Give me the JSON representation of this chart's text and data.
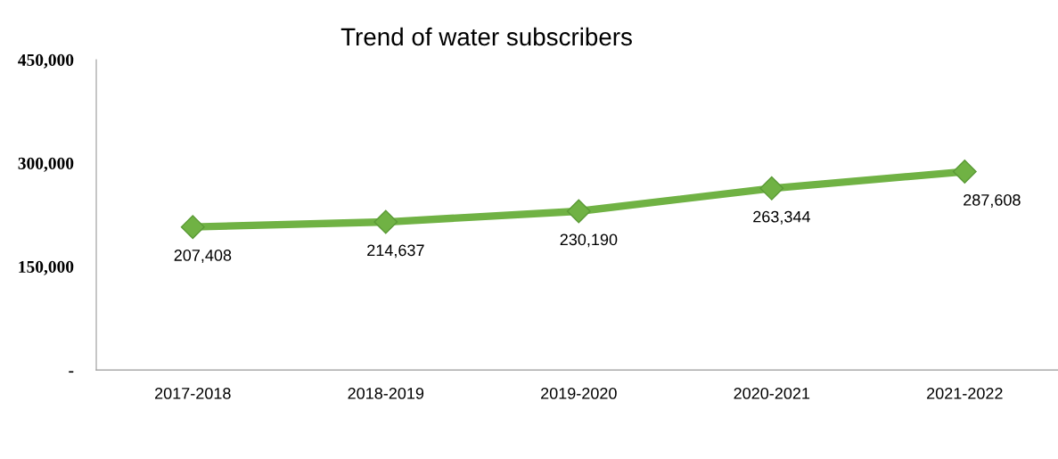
{
  "chart_data": {
    "type": "line",
    "title": "Trend of water subscribers",
    "categories": [
      "2017-2018",
      "2018-2019",
      "2019-2020",
      "2020-2021",
      "2021-2022"
    ],
    "series": [
      {
        "color": "#70b244",
        "values": [
          207408,
          214637,
          230190,
          263344,
          287608
        ],
        "value_labels": [
          "207,408",
          "214,637",
          "230,190",
          "263,344",
          "287,608"
        ]
      }
    ],
    "ylim": [
      0,
      450000
    ],
    "yticks": [
      {
        "value": 0,
        "label": "-"
      },
      {
        "value": 150000,
        "label": "150,000"
      },
      {
        "value": 300000,
        "label": "300,000"
      },
      {
        "value": 450000,
        "label": "450,000"
      }
    ],
    "marker": "diamond",
    "line_style": "solid",
    "grid": false,
    "legend": false
  }
}
